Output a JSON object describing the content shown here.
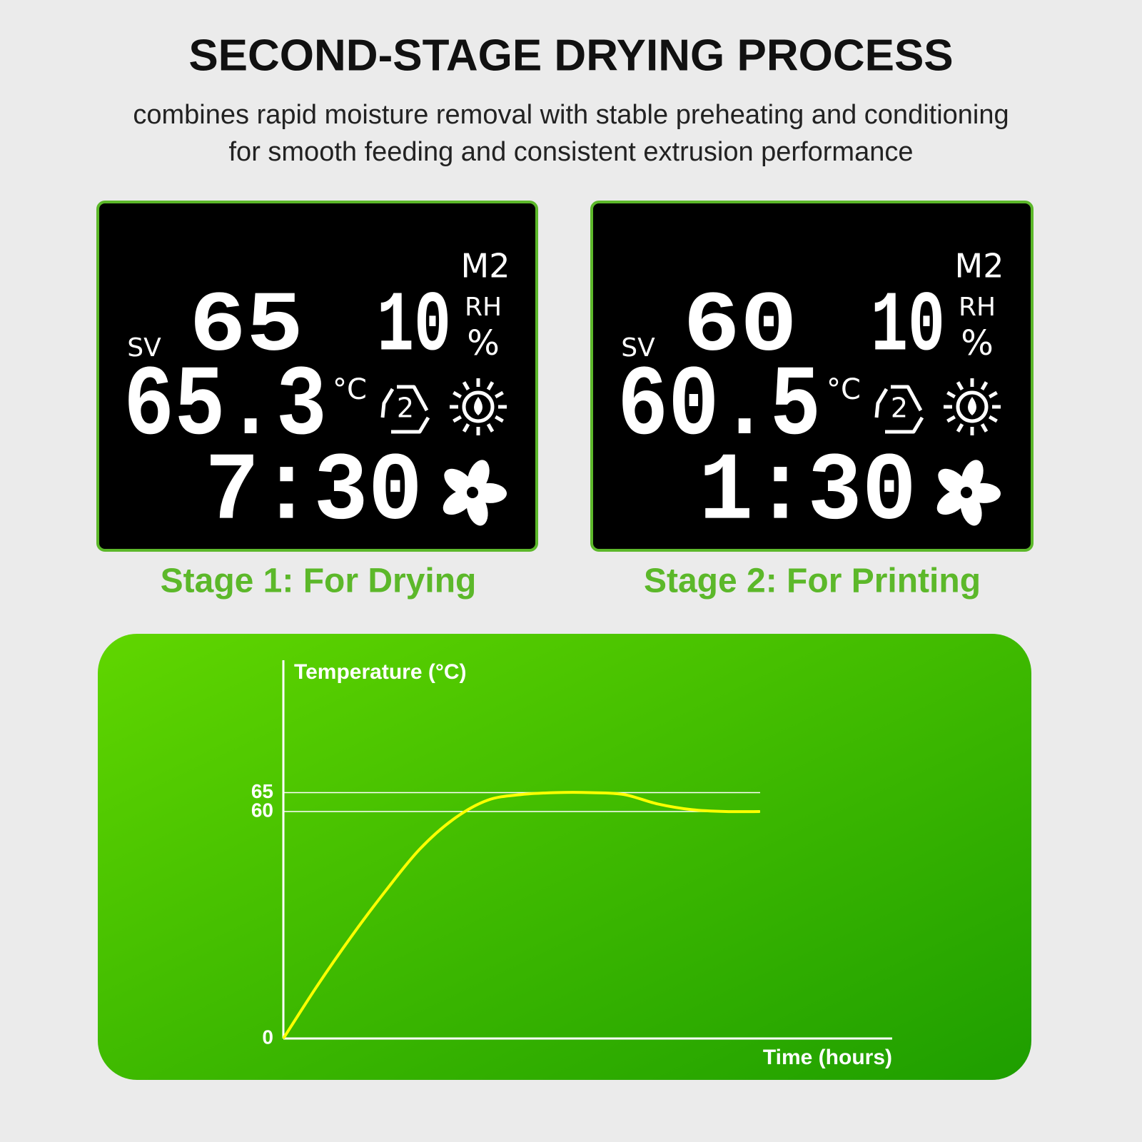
{
  "header": {
    "title": "SECOND-STAGE DRYING PROCESS",
    "subtitle": [
      "combines rapid moisture removal with stable preheating and conditioning",
      "for smooth feeding and consistent extrusion performance"
    ]
  },
  "displays": [
    {
      "mode": "M2",
      "sv_label": "SV",
      "set_temp": "65",
      "humidity": "10",
      "rh": "RH",
      "percent": "%",
      "temp": "65.3",
      "unit": "°C",
      "cycle": "2",
      "time": "7:30",
      "caption": "Stage 1: For Drying"
    },
    {
      "mode": "M2",
      "sv_label": "SV",
      "set_temp": "60",
      "humidity": "10",
      "rh": "RH",
      "percent": "%",
      "temp": "60.5",
      "unit": "°C",
      "cycle": "2",
      "time": "1:30",
      "caption": "Stage 2: For Printing"
    }
  ],
  "chart_data": {
    "type": "line",
    "y_label": "Temperature (°C)",
    "x_label": "Time (hours)",
    "categories": [
      null,
      null,
      null,
      null,
      null,
      null,
      null,
      null,
      null,
      null,
      null,
      null,
      null,
      null,
      null
    ],
    "values": [
      0,
      14,
      27,
      39,
      50,
      58,
      63,
      64.5,
      65,
      65,
      64.5,
      62,
      60.5,
      60,
      60
    ],
    "color": "#ffff00",
    "ylim": [
      0,
      100
    ],
    "yticks": [
      0,
      60,
      65
    ],
    "grid": true
  }
}
